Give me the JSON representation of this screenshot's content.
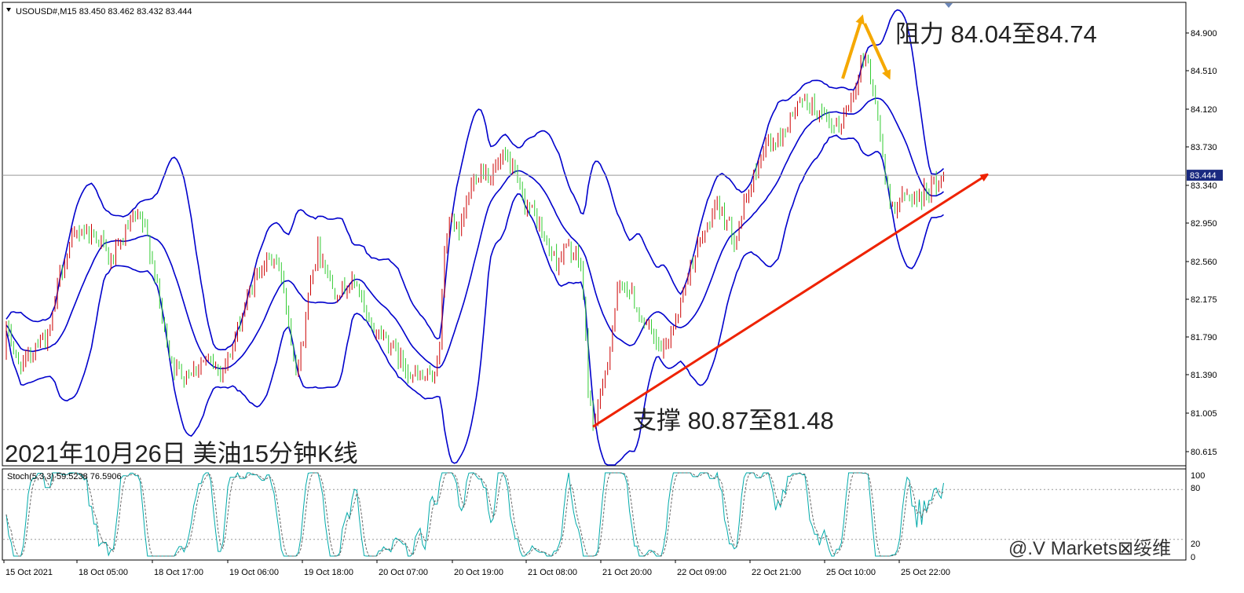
{
  "header": {
    "symbol_line": "USOUSD#,M15  83.450 83.462 83.432 83.444"
  },
  "stoch_header": "Stoch(5,3,3) 59.5238 76.5906",
  "current_price_label": "83.444",
  "annotations": {
    "resistance": "阻力 84.04至84.74",
    "support": "支撑 80.87至81.48",
    "chart_caption": "2021年10月26日 美油15分钟K线",
    "watermark": "@.V Markets⊠绥维"
  },
  "colors": {
    "frame": "#000000",
    "bollinger": "#0000cc",
    "bull_candle": "#cc0000",
    "bear_candle": "#33cc33",
    "trendline": "#ee2200",
    "arrow_resistance": "#f5a800",
    "current_price_line": "#999999",
    "price_badge": "#1a2a80",
    "stoch_main": "#00aaaa",
    "stoch_signal": "#666666"
  },
  "chart_data": [
    {
      "type": "candlestick",
      "title": "USOUSD#,M15",
      "y_ticks": [
        84.9,
        84.51,
        84.12,
        83.73,
        83.34,
        82.95,
        82.56,
        82.175,
        81.79,
        81.39,
        81.005,
        80.615
      ],
      "y_tick_labels": [
        "84.900",
        "84.510",
        "84.120",
        "83.730",
        "83.340",
        "82.950",
        "82.560",
        "82.175",
        "81.790",
        "81.390",
        "81.005",
        "80.615"
      ],
      "ylim": [
        80.45,
        85.3
      ],
      "x_tick_labels": [
        "15 Oct 2021",
        "18 Oct 05:00",
        "18 Oct 17:00",
        "19 Oct 06:00",
        "19 Oct 18:00",
        "20 Oct 07:00",
        "20 Oct 19:00",
        "21 Oct 08:00",
        "21 Oct 20:00",
        "22 Oct 09:00",
        "22 Oct 21:00",
        "25 Oct 10:00",
        "25 Oct 22:00"
      ],
      "current_price": 83.444,
      "close_path": [
        [
          0,
          81.6
        ],
        [
          10,
          81.9
        ],
        [
          22,
          81.5
        ],
        [
          35,
          81.55
        ],
        [
          50,
          81.8
        ],
        [
          62,
          81.75
        ],
        [
          75,
          82.4
        ],
        [
          88,
          82.7
        ],
        [
          102,
          82.9
        ],
        [
          115,
          82.85
        ],
        [
          128,
          82.8
        ],
        [
          140,
          82.55
        ],
        [
          152,
          82.7
        ],
        [
          165,
          82.95
        ],
        [
          178,
          83.0
        ],
        [
          188,
          82.8
        ],
        [
          198,
          82.4
        ],
        [
          208,
          81.9
        ],
        [
          220,
          81.5
        ],
        [
          232,
          81.4
        ],
        [
          245,
          81.45
        ],
        [
          258,
          81.55
        ],
        [
          270,
          81.5
        ],
        [
          282,
          81.45
        ],
        [
          295,
          81.65
        ],
        [
          308,
          82.0
        ],
        [
          320,
          82.3
        ],
        [
          335,
          82.55
        ],
        [
          348,
          82.6
        ],
        [
          360,
          82.4
        ],
        [
          370,
          81.8
        ],
        [
          378,
          81.45
        ],
        [
          386,
          81.75
        ],
        [
          395,
          82.4
        ],
        [
          405,
          82.7
        ],
        [
          415,
          82.5
        ],
        [
          425,
          82.25
        ],
        [
          440,
          82.3
        ],
        [
          455,
          82.35
        ],
        [
          468,
          81.9
        ],
        [
          480,
          81.85
        ],
        [
          495,
          81.75
        ],
        [
          510,
          81.55
        ],
        [
          525,
          81.4
        ],
        [
          540,
          81.35
        ],
        [
          552,
          81.4
        ],
        [
          560,
          81.7
        ],
        [
          566,
          82.7
        ],
        [
          575,
          83.05
        ],
        [
          585,
          82.8
        ],
        [
          595,
          83.2
        ],
        [
          605,
          83.45
        ],
        [
          615,
          83.5
        ],
        [
          625,
          83.45
        ],
        [
          635,
          83.55
        ],
        [
          645,
          83.6
        ],
        [
          655,
          83.45
        ],
        [
          665,
          83.2
        ],
        [
          680,
          83.05
        ],
        [
          695,
          82.75
        ],
        [
          710,
          82.55
        ],
        [
          720,
          82.7
        ],
        [
          730,
          82.65
        ],
        [
          740,
          82.5
        ],
        [
          745,
          81.9
        ],
        [
          750,
          81.1
        ],
        [
          756,
          80.9
        ],
        [
          764,
          81.15
        ],
        [
          775,
          81.6
        ],
        [
          785,
          82.2
        ],
        [
          795,
          82.35
        ],
        [
          805,
          82.2
        ],
        [
          815,
          82.0
        ],
        [
          825,
          81.9
        ],
        [
          835,
          81.7
        ],
        [
          845,
          81.65
        ],
        [
          855,
          81.85
        ],
        [
          865,
          82.1
        ],
        [
          875,
          82.4
        ],
        [
          885,
          82.65
        ],
        [
          895,
          82.8
        ],
        [
          905,
          83.0
        ],
        [
          915,
          83.1
        ],
        [
          925,
          83.0
        ],
        [
          935,
          82.8
        ],
        [
          945,
          83.05
        ],
        [
          955,
          83.3
        ],
        [
          965,
          83.55
        ],
        [
          975,
          83.8
        ],
        [
          985,
          83.75
        ],
        [
          995,
          83.85
        ],
        [
          1005,
          84.0
        ],
        [
          1015,
          84.15
        ],
        [
          1025,
          84.2
        ],
        [
          1035,
          84.15
        ],
        [
          1045,
          84.05
        ],
        [
          1055,
          83.95
        ],
        [
          1065,
          83.9
        ],
        [
          1075,
          84.05
        ],
        [
          1085,
          84.25
        ],
        [
          1095,
          84.55
        ],
        [
          1103,
          84.7
        ],
        [
          1110,
          84.35
        ],
        [
          1118,
          84.05
        ],
        [
          1125,
          83.55
        ],
        [
          1132,
          83.15
        ],
        [
          1140,
          83.15
        ],
        [
          1150,
          83.2
        ],
        [
          1160,
          83.25
        ],
        [
          1170,
          83.2
        ],
        [
          1180,
          83.3
        ],
        [
          1190,
          83.35
        ],
        [
          1198,
          83.4
        ],
        [
          1204,
          83.44
        ]
      ],
      "trendline": {
        "from": [
          755,
          80.87
        ],
        "to": [
          1255,
          83.44
        ]
      }
    },
    {
      "type": "line",
      "title": "Stoch(5,3,3)",
      "y_tick_labels": [
        "100",
        "80",
        "20",
        "0"
      ],
      "ylim": [
        0,
        100
      ],
      "levels": [
        80,
        20
      ],
      "main_value": 59.5238,
      "signal_value": 76.5906
    }
  ]
}
